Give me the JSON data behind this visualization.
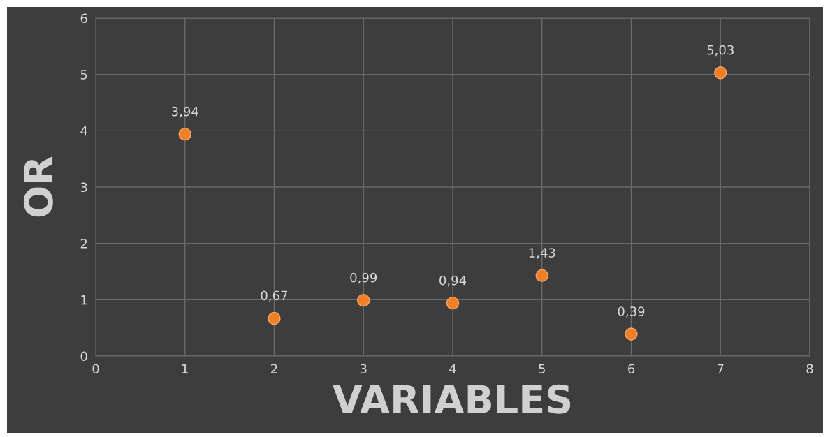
{
  "chart_data": {
    "type": "scatter",
    "xlabel": "VARIABLES",
    "ylabel": "OR",
    "x": [
      1,
      2,
      3,
      4,
      5,
      6,
      7
    ],
    "series": [
      {
        "color": "#f07f26",
        "values": [
          3.94,
          0.67,
          0.99,
          0.94,
          1.43,
          0.39,
          5.03
        ],
        "value_labels": [
          "3,94",
          "0,67",
          "0,99",
          "0,94",
          "1,43",
          "0,39",
          "5,03"
        ]
      }
    ],
    "xlim": [
      0,
      8
    ],
    "xticks": [
      0,
      1,
      2,
      3,
      4,
      5,
      6,
      7,
      8
    ],
    "ylim": [
      0,
      6
    ],
    "yticks": [
      0,
      1,
      2,
      3,
      4,
      5,
      6
    ],
    "grid": true,
    "marker": "circle"
  }
}
